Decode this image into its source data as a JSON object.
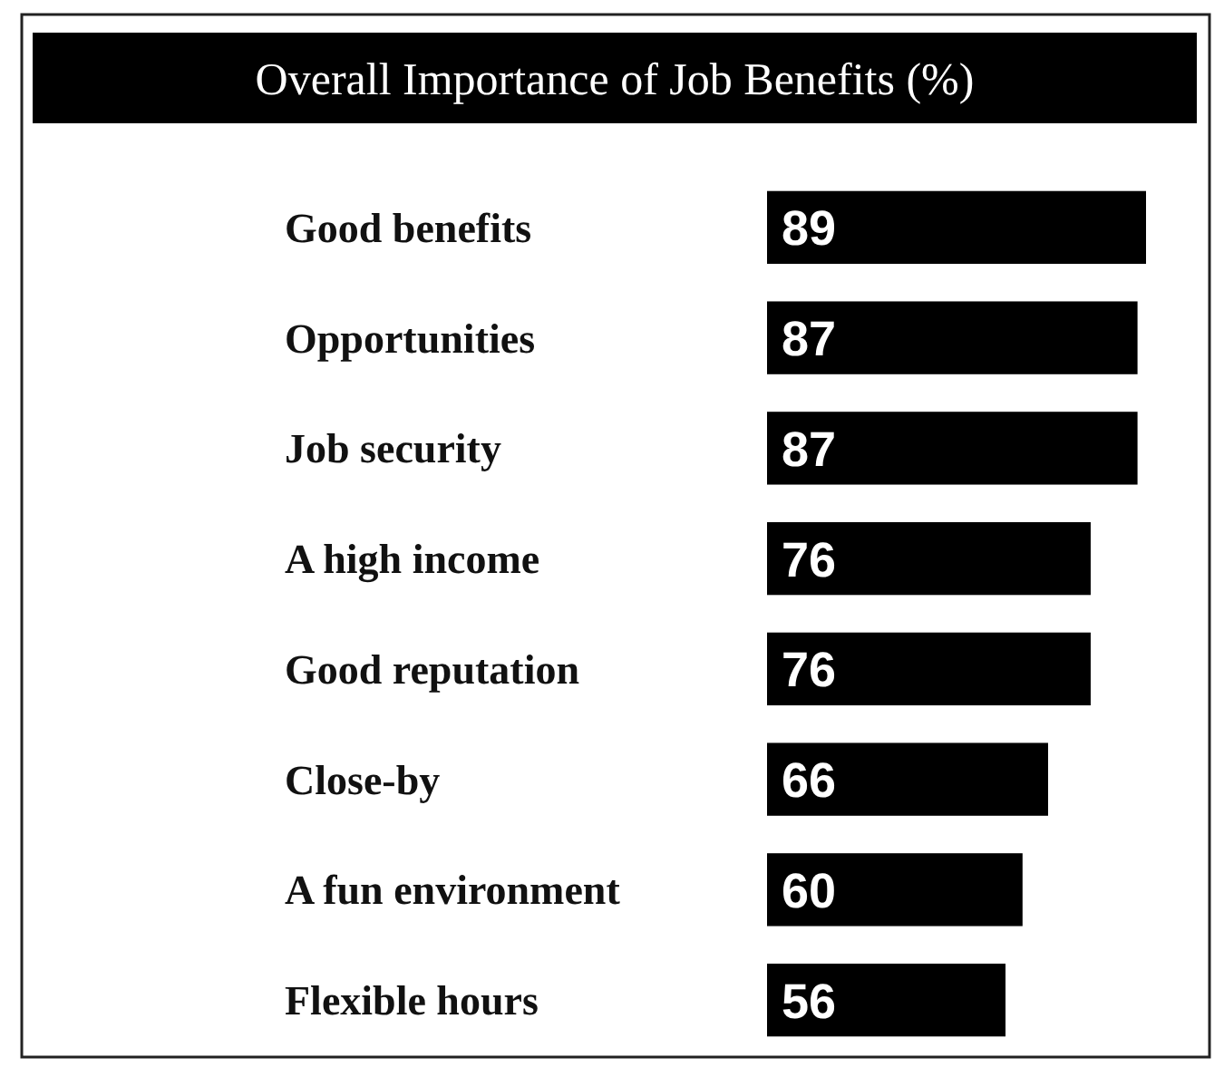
{
  "chart_data": {
    "type": "bar",
    "orientation": "horizontal",
    "title": "Overall Importance of Job Benefits (%)",
    "categories": [
      "Good benefits",
      "Opportunities",
      "Job security",
      "A high income",
      "Good reputation",
      "Close-by",
      "A fun environment",
      "Flexible hours"
    ],
    "values": [
      89,
      87,
      87,
      76,
      76,
      66,
      60,
      56
    ],
    "color": "#000000",
    "data_labels": true
  }
}
